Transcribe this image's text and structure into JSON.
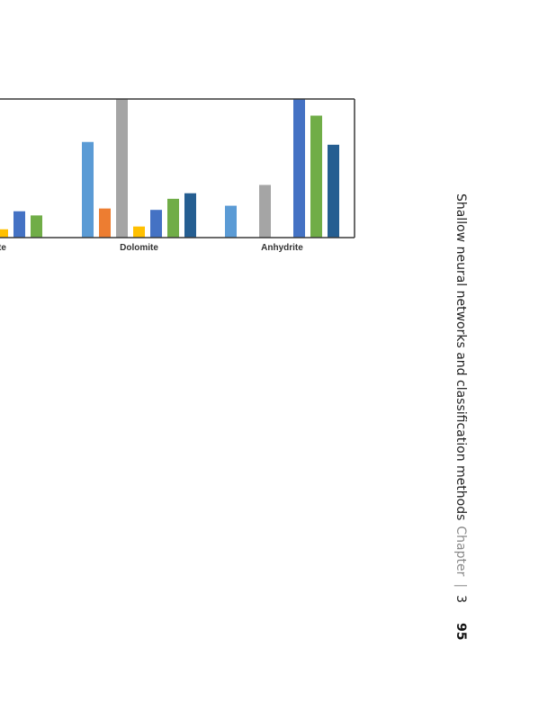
{
  "running_head": {
    "section_title": "Shallow neural networks and classification methods",
    "chapter_word": "Chapter",
    "separator": "|",
    "chapter_number": "3",
    "page_number": "95"
  },
  "chart_data": {
    "type": "bar",
    "title": "",
    "xlabel": "",
    "ylabel": "",
    "categories": [
      "te",
      "Dolomite",
      "Anhydrite"
    ],
    "ylim": [
      0,
      100
    ],
    "grid": false,
    "series": [
      {
        "color": "#5b9bd5",
        "values": [
          null,
          69,
          23
        ]
      },
      {
        "color": "#ed7d31",
        "values": [
          null,
          21,
          null
        ]
      },
      {
        "color": "#a5a5a5",
        "values": [
          null,
          100,
          38
        ]
      },
      {
        "color": "#ffc000",
        "values": [
          6,
          8,
          null
        ]
      },
      {
        "color": "#4472c4",
        "values": [
          19,
          20,
          100
        ]
      },
      {
        "color": "#70ad47",
        "values": [
          16,
          28,
          88
        ]
      },
      {
        "color": "#255e91",
        "values": [
          null,
          32,
          67
        ]
      }
    ]
  }
}
